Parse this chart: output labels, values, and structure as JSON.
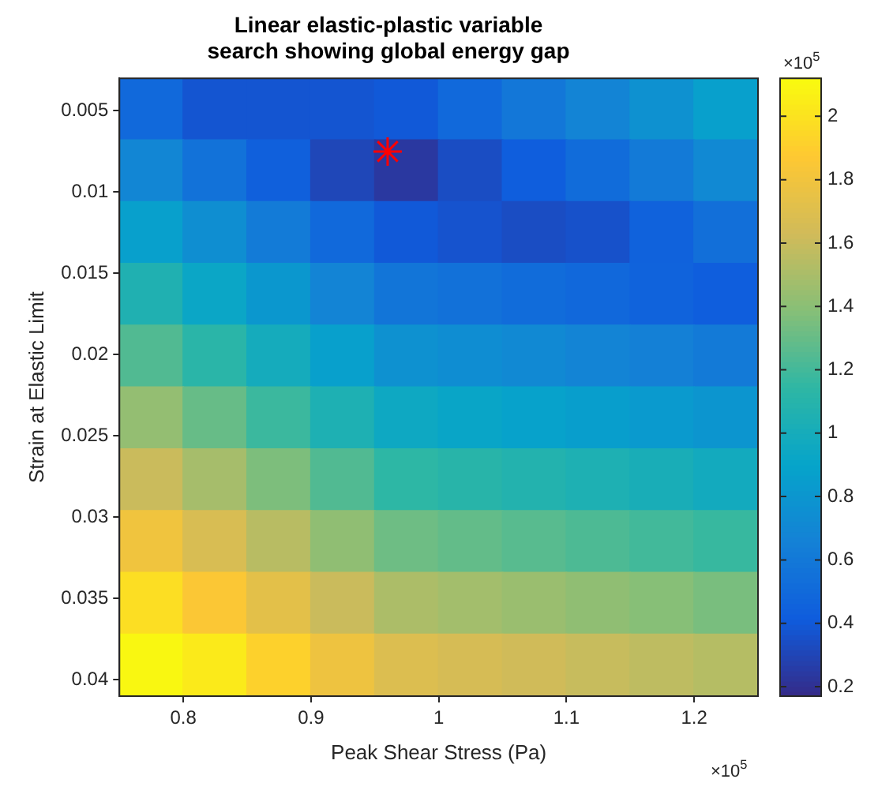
{
  "chart_data": {
    "type": "heatmap",
    "title": "Linear elastic-plastic variable search showing global energy gap",
    "xlabel": "Peak Shear Stress (Pa)",
    "ylabel": "Strain at Elastic Limit",
    "x": [
      0.775,
      0.825,
      0.875,
      0.925,
      0.975,
      1.025,
      1.075,
      1.125,
      1.175,
      1.225
    ],
    "y": [
      0.0049,
      0.0087,
      0.0125,
      0.0163,
      0.0201,
      0.0239,
      0.0277,
      0.0315,
      0.0353,
      0.0391
    ],
    "cells": [
      [
        0.5,
        0.38,
        0.38,
        0.38,
        0.4,
        0.5,
        0.59,
        0.68,
        0.77,
        0.87
      ],
      [
        0.69,
        0.56,
        0.44,
        0.31,
        0.24,
        0.34,
        0.43,
        0.52,
        0.61,
        0.71
      ],
      [
        0.87,
        0.75,
        0.62,
        0.5,
        0.4,
        0.37,
        0.34,
        0.36,
        0.45,
        0.54
      ],
      [
        1.06,
        0.93,
        0.81,
        0.68,
        0.58,
        0.55,
        0.52,
        0.49,
        0.46,
        0.43
      ],
      [
        1.24,
        1.12,
        0.99,
        0.87,
        0.77,
        0.74,
        0.71,
        0.68,
        0.65,
        0.61
      ],
      [
        1.43,
        1.3,
        1.18,
        1.05,
        0.95,
        0.92,
        0.89,
        0.86,
        0.83,
        0.8
      ],
      [
        1.61,
        1.49,
        1.36,
        1.24,
        1.14,
        1.11,
        1.08,
        1.05,
        1.02,
        0.98
      ],
      [
        1.8,
        1.67,
        1.55,
        1.42,
        1.32,
        1.29,
        1.26,
        1.23,
        1.2,
        1.17
      ],
      [
        1.98,
        1.86,
        1.73,
        1.61,
        1.51,
        1.48,
        1.45,
        1.42,
        1.39,
        1.35
      ],
      [
        2.1,
        2.04,
        1.92,
        1.79,
        1.69,
        1.66,
        1.63,
        1.6,
        1.57,
        1.54
      ]
    ],
    "series": [
      {
        "type": "scatter",
        "color": "#ff0000",
        "x": [
          0.96
        ],
        "values": [
          0.0075
        ]
      }
    ],
    "marker": "cross",
    "xlim": [
      0.75,
      1.25
    ],
    "xticks": [
      0.8,
      0.9,
      1,
      1.1,
      1.2
    ],
    "ylim": [
      0.041,
      0.003
    ],
    "yticks": [
      0.005,
      0.01,
      0.015,
      0.02,
      0.025,
      0.03,
      0.035,
      0.04
    ],
    "clim": [
      0.17,
      2.12
    ],
    "cticks": [
      0.2,
      0.4,
      0.6,
      0.8,
      1,
      1.2,
      1.4,
      1.6,
      1.8,
      2
    ],
    "annotations": [
      "×10$^{5}$",
      "×10$^{5}$"
    ],
    "legend": false
  }
}
